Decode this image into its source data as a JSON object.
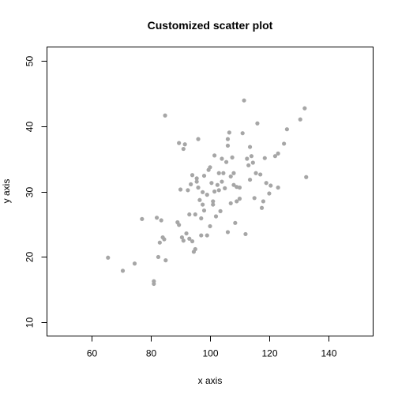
{
  "chart_data": {
    "type": "scatter",
    "title": "Customized scatter plot",
    "xlabel": "x axis",
    "ylabel": "y axis",
    "xlim": [
      45,
      155
    ],
    "ylim": [
      8,
      52
    ],
    "x_ticks": [
      60,
      80,
      100,
      120,
      140
    ],
    "y_ticks": [
      10,
      20,
      30,
      40,
      50
    ],
    "grid": false,
    "point_color": "#a6a6a6",
    "series": [
      {
        "points": [
          [
            65.5,
            19.9
          ],
          [
            70.5,
            17.9
          ],
          [
            74.5,
            19.0
          ],
          [
            77.0,
            25.8
          ],
          [
            81.0,
            16.3
          ],
          [
            81.0,
            15.9
          ],
          [
            82.0,
            26.0
          ],
          [
            82.5,
            20.0
          ],
          [
            83.0,
            22.2
          ],
          [
            83.5,
            25.6
          ],
          [
            84.0,
            23.0
          ],
          [
            84.5,
            22.7
          ],
          [
            85.0,
            19.5
          ],
          [
            84.8,
            41.6
          ],
          [
            89.0,
            25.3
          ],
          [
            89.5,
            24.9
          ],
          [
            89.5,
            37.4
          ],
          [
            90.0,
            30.3
          ],
          [
            90.5,
            23.0
          ],
          [
            91.0,
            22.5
          ],
          [
            91.0,
            36.5
          ],
          [
            91.5,
            37.2
          ],
          [
            92.0,
            23.6
          ],
          [
            92.5,
            30.2
          ],
          [
            93.0,
            22.8
          ],
          [
            93.0,
            26.5
          ],
          [
            93.5,
            31.1
          ],
          [
            94.0,
            32.5
          ],
          [
            94.0,
            22.4
          ],
          [
            94.5,
            20.8
          ],
          [
            95.0,
            21.2
          ],
          [
            95.0,
            26.5
          ],
          [
            95.5,
            31.5
          ],
          [
            95.5,
            32.0
          ],
          [
            96.0,
            30.6
          ],
          [
            96.0,
            38.0
          ],
          [
            96.5,
            28.7
          ],
          [
            97.0,
            23.3
          ],
          [
            97.0,
            25.9
          ],
          [
            97.5,
            28.0
          ],
          [
            97.5,
            29.9
          ],
          [
            98.0,
            32.4
          ],
          [
            98.0,
            27.1
          ],
          [
            99.0,
            29.5
          ],
          [
            99.0,
            23.3
          ],
          [
            99.5,
            33.3
          ],
          [
            100.0,
            33.7
          ],
          [
            100.0,
            24.7
          ],
          [
            100.5,
            31.3
          ],
          [
            101.0,
            28.0
          ],
          [
            101.0,
            28.5
          ],
          [
            101.5,
            30.0
          ],
          [
            101.5,
            35.5
          ],
          [
            102.0,
            26.2
          ],
          [
            102.5,
            31.0
          ],
          [
            103.0,
            32.8
          ],
          [
            103.0,
            30.2
          ],
          [
            103.5,
            27.0
          ],
          [
            104.0,
            31.5
          ],
          [
            104.0,
            35.0
          ],
          [
            104.5,
            32.8
          ],
          [
            105.0,
            30.5
          ],
          [
            105.5,
            34.5
          ],
          [
            106.0,
            23.8
          ],
          [
            106.0,
            37.0
          ],
          [
            106.0,
            38.0
          ],
          [
            106.5,
            39.0
          ],
          [
            107.0,
            28.2
          ],
          [
            107.0,
            32.3
          ],
          [
            107.5,
            35.2
          ],
          [
            108.0,
            32.8
          ],
          [
            108.0,
            31.0
          ],
          [
            108.5,
            25.2
          ],
          [
            109.0,
            28.5
          ],
          [
            109.0,
            30.7
          ],
          [
            110.0,
            30.6
          ],
          [
            110.0,
            28.9
          ],
          [
            111.0,
            38.9
          ],
          [
            111.5,
            43.9
          ],
          [
            112.0,
            23.5
          ],
          [
            112.5,
            35.0
          ],
          [
            113.0,
            34.0
          ],
          [
            113.5,
            31.8
          ],
          [
            113.5,
            36.8
          ],
          [
            114.0,
            35.4
          ],
          [
            114.5,
            34.4
          ],
          [
            115.0,
            29.0
          ],
          [
            115.5,
            32.8
          ],
          [
            116.0,
            40.4
          ],
          [
            117.0,
            32.6
          ],
          [
            117.5,
            27.5
          ],
          [
            118.0,
            28.5
          ],
          [
            118.5,
            35.1
          ],
          [
            119.0,
            31.3
          ],
          [
            120.0,
            29.7
          ],
          [
            120.5,
            30.9
          ],
          [
            122.0,
            35.4
          ],
          [
            123.0,
            35.8
          ],
          [
            123.0,
            30.6
          ],
          [
            125.0,
            37.3
          ],
          [
            126.0,
            39.5
          ],
          [
            130.5,
            41.0
          ],
          [
            132.0,
            42.7
          ],
          [
            132.5,
            32.2
          ]
        ]
      }
    ]
  }
}
